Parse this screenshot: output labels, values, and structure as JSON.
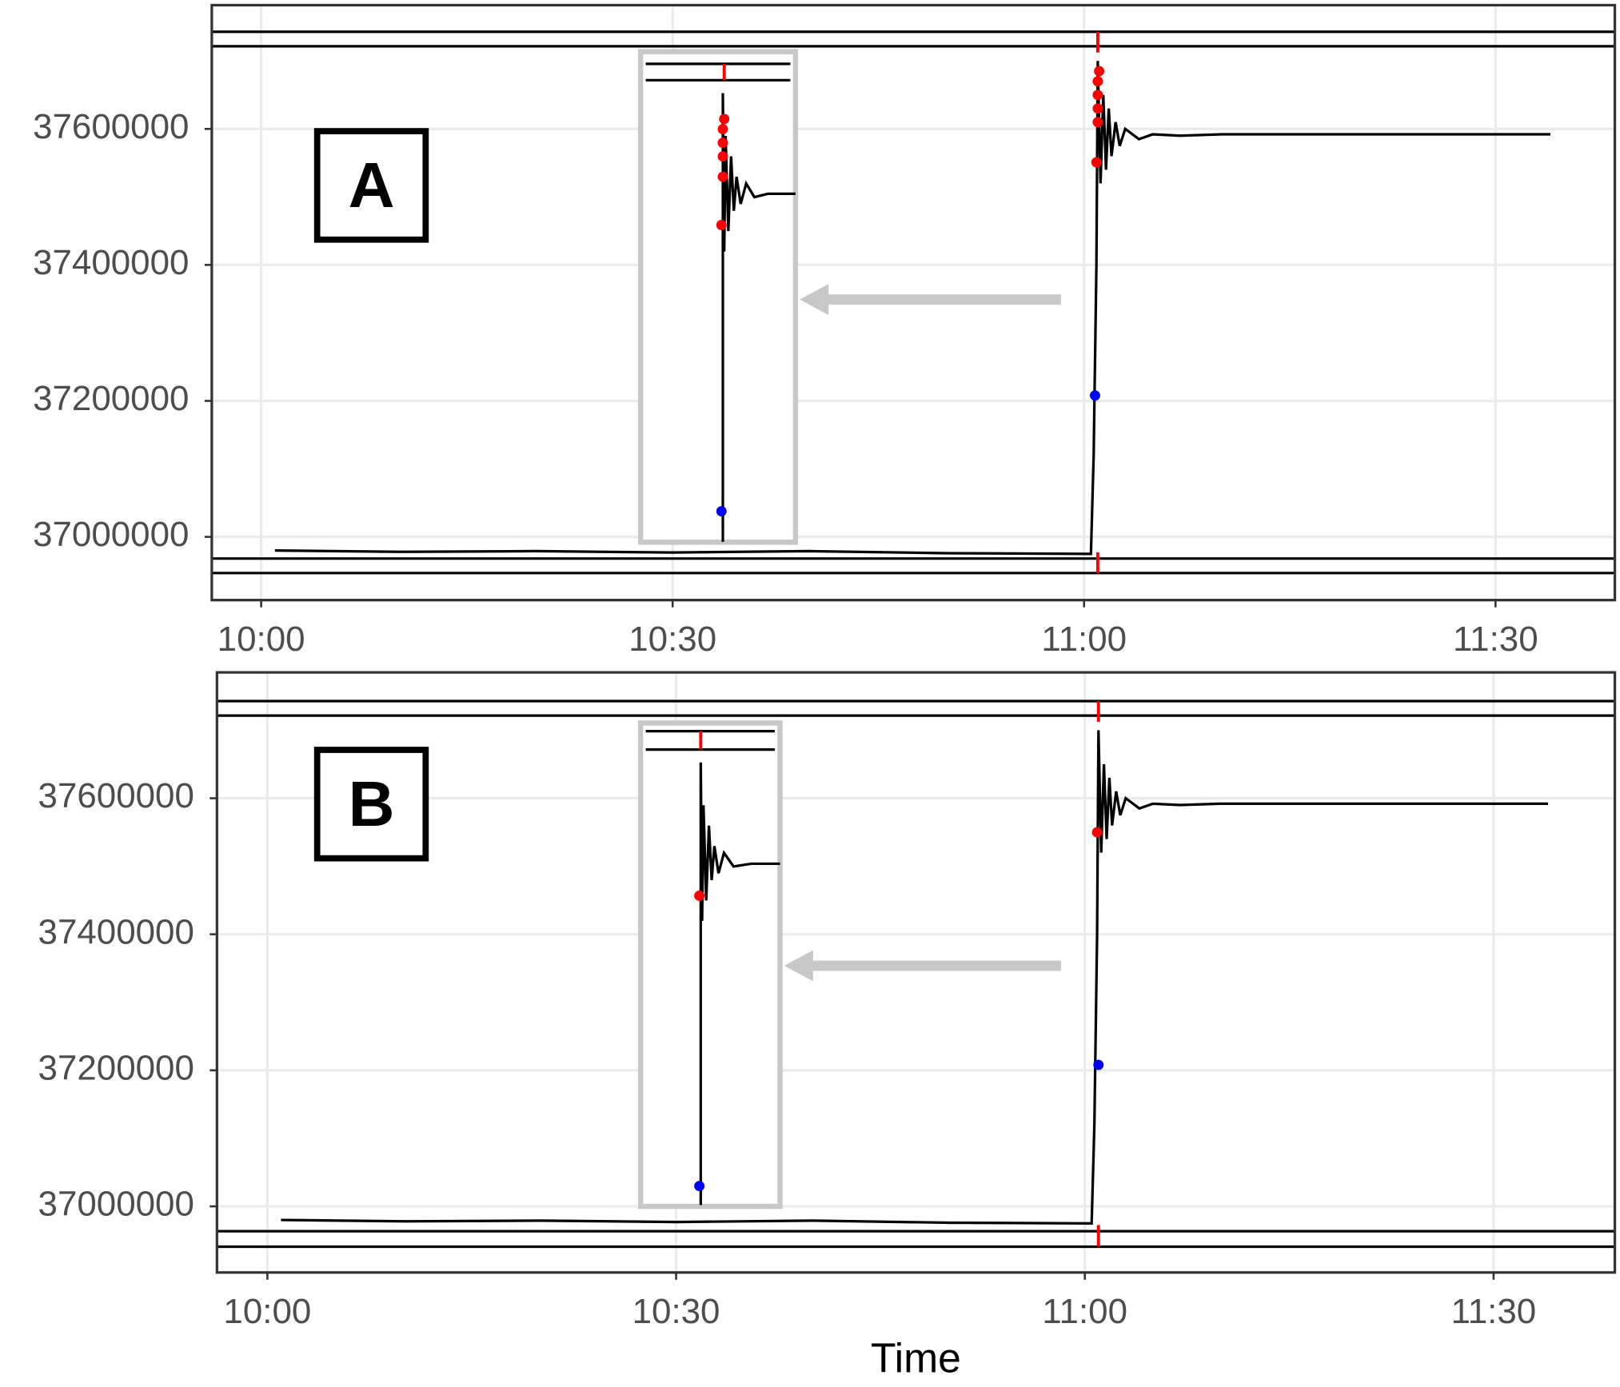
{
  "chart_data": [
    {
      "type": "line",
      "label": "A",
      "color": "#000000",
      "grid": true,
      "xlim": [
        596.4,
        698.7
      ],
      "ylim": [
        36907000,
        37782000
      ],
      "xticks": [
        {
          "value": 600,
          "label": "10:00"
        },
        {
          "value": 630,
          "label": "10:30"
        },
        {
          "value": 660,
          "label": "11:00"
        },
        {
          "value": 690,
          "label": "11:30"
        }
      ],
      "yticks": [
        37000000,
        37200000,
        37400000,
        37600000
      ],
      "x": [
        601,
        610,
        620,
        630,
        640,
        650,
        660.5,
        660.7,
        660.9,
        661.0,
        661.2,
        661.4,
        661.6,
        661.8,
        662.0,
        662.3,
        662.6,
        663,
        664,
        665,
        667,
        670,
        680,
        694
      ],
      "values": [
        36980000,
        36978000,
        36979000,
        36977000,
        36979000,
        36976000,
        36975000,
        37120000,
        37400000,
        37700000,
        37520000,
        37650000,
        37540000,
        37630000,
        37560000,
        37610000,
        37575000,
        37600000,
        37585000,
        37592000,
        37590000,
        37592000,
        37592000,
        37592000
      ],
      "hlines": [
        37742800,
        37721500,
        36968100,
        36946800
      ],
      "hline_color": "#000000",
      "event_x": 661.0,
      "event_color": "#ff0000",
      "points": [
        {
          "color": "#ff0000",
          "x": [
            660.9,
            661.0,
            661.0,
            661.0,
            661.0,
            661.1
          ],
          "values": [
            37551000,
            37610000,
            37630000,
            37650000,
            37670000,
            37685000
          ]
        },
        {
          "color": "#0000ff",
          "x": [
            660.8
          ],
          "values": [
            37208000
          ]
        }
      ],
      "inset": {
        "xlim": [
          627.7,
          639.0
        ],
        "ylim": [
          36992400,
          37714000
        ],
        "x": [
          633.7,
          633.7,
          633.8,
          633.9,
          634.1,
          634.3,
          634.5,
          634.7,
          635,
          635.4,
          636,
          637,
          639
        ],
        "values": [
          36993000,
          37653000,
          37420000,
          37590000,
          37450000,
          37560000,
          37480000,
          37530000,
          37490000,
          37520000,
          37500000,
          37505000,
          37505000
        ],
        "hlines": [
          37696000,
          37672000
        ],
        "event_x": 633.8,
        "points": [
          {
            "color": "#ff0000",
            "x": [
              633.6,
              633.7,
              633.7,
              633.7,
              633.7,
              633.8
            ],
            "values": [
              37459000,
              37530000,
              37560000,
              37580000,
              37600000,
              37615000
            ]
          },
          {
            "color": "#0000ff",
            "x": [
              633.6
            ],
            "values": [
              37038000
            ]
          }
        ]
      }
    },
    {
      "type": "line",
      "label": "B",
      "color": "#000000",
      "grid": true,
      "x_label": "Time",
      "xlim": [
        596.3,
        698.9
      ],
      "ylim": [
        36902800,
        37785000
      ],
      "xticks": [
        {
          "value": 600,
          "label": "10:00"
        },
        {
          "value": 630,
          "label": "10:30"
        },
        {
          "value": 660,
          "label": "11:00"
        },
        {
          "value": 690,
          "label": "11:30"
        }
      ],
      "yticks": [
        37000000,
        37200000,
        37400000,
        37600000
      ],
      "x": [
        601,
        610,
        620,
        630,
        640,
        650,
        660.5,
        660.7,
        660.9,
        661.0,
        661.2,
        661.4,
        661.6,
        661.8,
        662.0,
        662.3,
        662.6,
        663,
        664,
        665,
        667,
        670,
        680,
        694
      ],
      "values": [
        36980000,
        36978000,
        36979000,
        36977000,
        36979000,
        36976000,
        36975000,
        37120000,
        37400000,
        37700000,
        37520000,
        37650000,
        37540000,
        37630000,
        37560000,
        37610000,
        37575000,
        37600000,
        37585000,
        37592000,
        37590000,
        37592000,
        37592000,
        37592000
      ],
      "hlines": [
        37742800,
        37721500,
        36963500,
        36940700
      ],
      "hline_color": "#000000",
      "event_x": 661.0,
      "event_color": "#ff0000",
      "points": [
        {
          "color": "#ff0000",
          "x": [
            660.9
          ],
          "values": [
            37550000
          ]
        },
        {
          "color": "#0000ff",
          "x": [
            661.0
          ],
          "values": [
            37208000
          ]
        }
      ],
      "inset": {
        "xlim": [
          627.4,
          637.6
        ],
        "ylim": [
          37000000,
          37711000
        ],
        "x": [
          631.8,
          631.8,
          631.9,
          632.0,
          632.2,
          632.4,
          632.6,
          632.8,
          633.1,
          633.5,
          634.2,
          635.5,
          637.6
        ],
        "values": [
          37002000,
          37653000,
          37420000,
          37590000,
          37450000,
          37560000,
          37480000,
          37530000,
          37490000,
          37520000,
          37500000,
          37504000,
          37504000
        ],
        "hlines": [
          37699000,
          37672000
        ],
        "event_x": 631.8,
        "points": [
          {
            "color": "#ff0000",
            "x": [
              631.7
            ],
            "values": [
              37457000
            ]
          },
          {
            "color": "#0000ff",
            "x": [
              631.7
            ],
            "values": [
              37030000
            ]
          }
        ]
      }
    }
  ]
}
